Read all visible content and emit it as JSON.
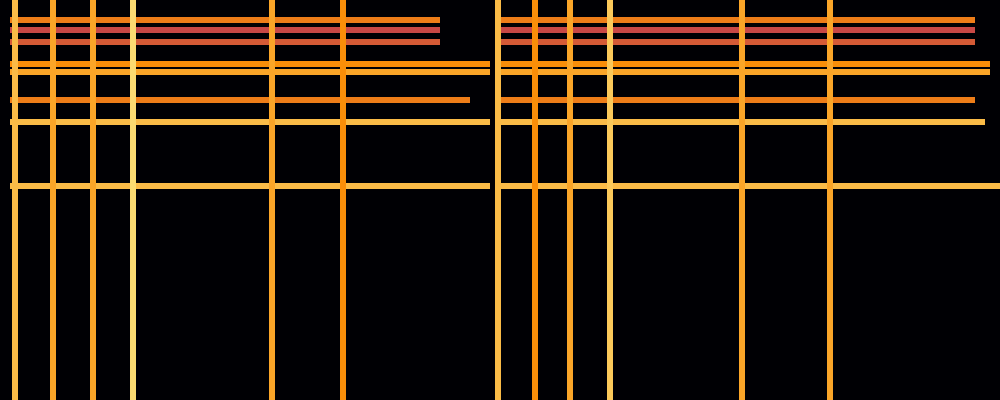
{
  "chart_data": {
    "type": "spectrogram",
    "xlim": [
      0,
      1000
    ],
    "ylim": [
      0,
      400
    ],
    "tick_labels": false,
    "onsets": [
      {
        "x": 15,
        "intensity": 0.85
      },
      {
        "x": 53,
        "intensity": 0.8
      },
      {
        "x": 93,
        "intensity": 0.8
      },
      {
        "x": 133,
        "intensity": 0.92
      },
      {
        "x": 272,
        "intensity": 0.8
      },
      {
        "x": 343,
        "intensity": 0.75
      },
      {
        "x": 498,
        "intensity": 0.85
      },
      {
        "x": 535,
        "intensity": 0.75
      },
      {
        "x": 570,
        "intensity": 0.8
      },
      {
        "x": 610,
        "intensity": 0.88
      },
      {
        "x": 742,
        "intensity": 0.8
      },
      {
        "x": 830,
        "intensity": 0.8
      }
    ],
    "partials": [
      {
        "frequency": 380,
        "start": 10,
        "end": 440,
        "intensity": 0.7
      },
      {
        "frequency": 370,
        "start": 10,
        "end": 440,
        "intensity": 0.55
      },
      {
        "frequency": 358,
        "start": 10,
        "end": 440,
        "intensity": 0.6
      },
      {
        "frequency": 336,
        "start": 10,
        "end": 490,
        "intensity": 0.75
      },
      {
        "frequency": 328,
        "start": 10,
        "end": 490,
        "intensity": 0.8
      },
      {
        "frequency": 300,
        "start": 10,
        "end": 470,
        "intensity": 0.7
      },
      {
        "frequency": 278,
        "start": 10,
        "end": 490,
        "intensity": 0.85
      },
      {
        "frequency": 214,
        "start": 10,
        "end": 490,
        "intensity": 0.85
      },
      {
        "frequency": 380,
        "start": 495,
        "end": 975,
        "intensity": 0.7
      },
      {
        "frequency": 370,
        "start": 495,
        "end": 975,
        "intensity": 0.55
      },
      {
        "frequency": 358,
        "start": 495,
        "end": 975,
        "intensity": 0.6
      },
      {
        "frequency": 336,
        "start": 495,
        "end": 990,
        "intensity": 0.75
      },
      {
        "frequency": 328,
        "start": 495,
        "end": 990,
        "intensity": 0.8
      },
      {
        "frequency": 300,
        "start": 495,
        "end": 975,
        "intensity": 0.7
      },
      {
        "frequency": 278,
        "start": 495,
        "end": 985,
        "intensity": 0.85
      },
      {
        "frequency": 214,
        "start": 495,
        "end": 1000,
        "intensity": 0.85
      }
    ]
  }
}
